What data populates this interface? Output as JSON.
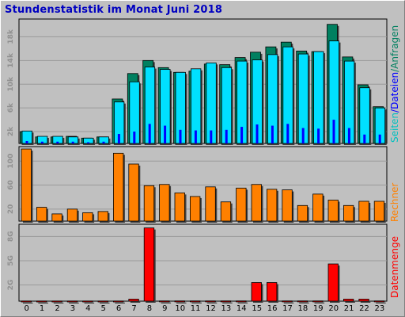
{
  "title": "Stundenstatistik im Monat Juni 2018",
  "colors": {
    "panel_bg": "#c0c0c0",
    "seiten": "#008060",
    "dateien": "#0000ff",
    "anfragen": "#00e0ff",
    "rechner": "#ff8000",
    "datenmenge": "#ff0000"
  },
  "legend": {
    "seiten": "Seiten",
    "slash1": "/",
    "dateien": "Dateien",
    "slash2": "/",
    "anfragen": "Anfragen",
    "rechner": "Rechner",
    "datenmenge": "Datenmenge"
  },
  "chart_data": [
    {
      "type": "bar",
      "categories": [
        "0",
        "1",
        "2",
        "3",
        "4",
        "5",
        "6",
        "7",
        "8",
        "9",
        "10",
        "11",
        "12",
        "13",
        "14",
        "15",
        "16",
        "17",
        "18",
        "19",
        "20",
        "21",
        "22",
        "23"
      ],
      "series": [
        {
          "name": "Seiten",
          "values": [
            2000,
            1100,
            1100,
            1200,
            900,
            1100,
            7500,
            11800,
            14000,
            12800,
            12000,
            12200,
            13400,
            13300,
            14500,
            15400,
            16300,
            17100,
            15600,
            15500,
            20100,
            14600,
            9900,
            6200
          ]
        },
        {
          "name": "Dateien",
          "values": [
            400,
            300,
            300,
            300,
            200,
            300,
            1600,
            2000,
            3300,
            3000,
            2300,
            2200,
            2200,
            2300,
            2800,
            3200,
            3000,
            3300,
            2600,
            2500,
            4000,
            2600,
            1500,
            1500
          ]
        },
        {
          "name": "Anfragen",
          "values": [
            2100,
            1200,
            1200,
            1100,
            900,
            1100,
            7000,
            10400,
            12900,
            12500,
            12000,
            12600,
            13600,
            12800,
            13900,
            14100,
            15000,
            16300,
            15100,
            15500,
            17300,
            13900,
            9400,
            6000
          ]
        }
      ],
      "yticks": [
        "2k",
        "6k",
        "10k",
        "14k",
        "18k"
      ],
      "ylim": [
        0,
        21000
      ]
    },
    {
      "type": "bar",
      "categories": [
        "0",
        "1",
        "2",
        "3",
        "4",
        "5",
        "6",
        "7",
        "8",
        "9",
        "10",
        "11",
        "12",
        "13",
        "14",
        "15",
        "16",
        "17",
        "18",
        "19",
        "20",
        "21",
        "22",
        "23"
      ],
      "series": [
        {
          "name": "Rechner",
          "values": [
            120,
            23,
            12,
            20,
            14,
            16,
            113,
            95,
            59,
            61,
            47,
            41,
            57,
            32,
            55,
            61,
            53,
            52,
            26,
            45,
            35,
            26,
            33,
            33
          ]
        }
      ],
      "yticks": [
        "20",
        "60",
        "100"
      ],
      "ylim": [
        0,
        124
      ]
    },
    {
      "type": "bar",
      "categories": [
        "0",
        "1",
        "2",
        "3",
        "4",
        "5",
        "6",
        "7",
        "8",
        "9",
        "10",
        "11",
        "12",
        "13",
        "14",
        "15",
        "16",
        "17",
        "18",
        "19",
        "20",
        "21",
        "22",
        "23"
      ],
      "series": [
        {
          "name": "Datenmenge",
          "values": [
            0.02,
            0.02,
            0.02,
            0.02,
            0.02,
            0.02,
            0.02,
            0.25,
            9.05,
            0.03,
            0.03,
            0.03,
            0.03,
            0.03,
            0.03,
            2.3,
            2.3,
            0.03,
            0.03,
            0.03,
            4.6,
            0.25,
            0.25,
            0.03
          ]
        }
      ],
      "yticks": [
        "2G",
        "5G",
        "8G"
      ],
      "ylim": [
        0,
        9.5
      ]
    }
  ]
}
